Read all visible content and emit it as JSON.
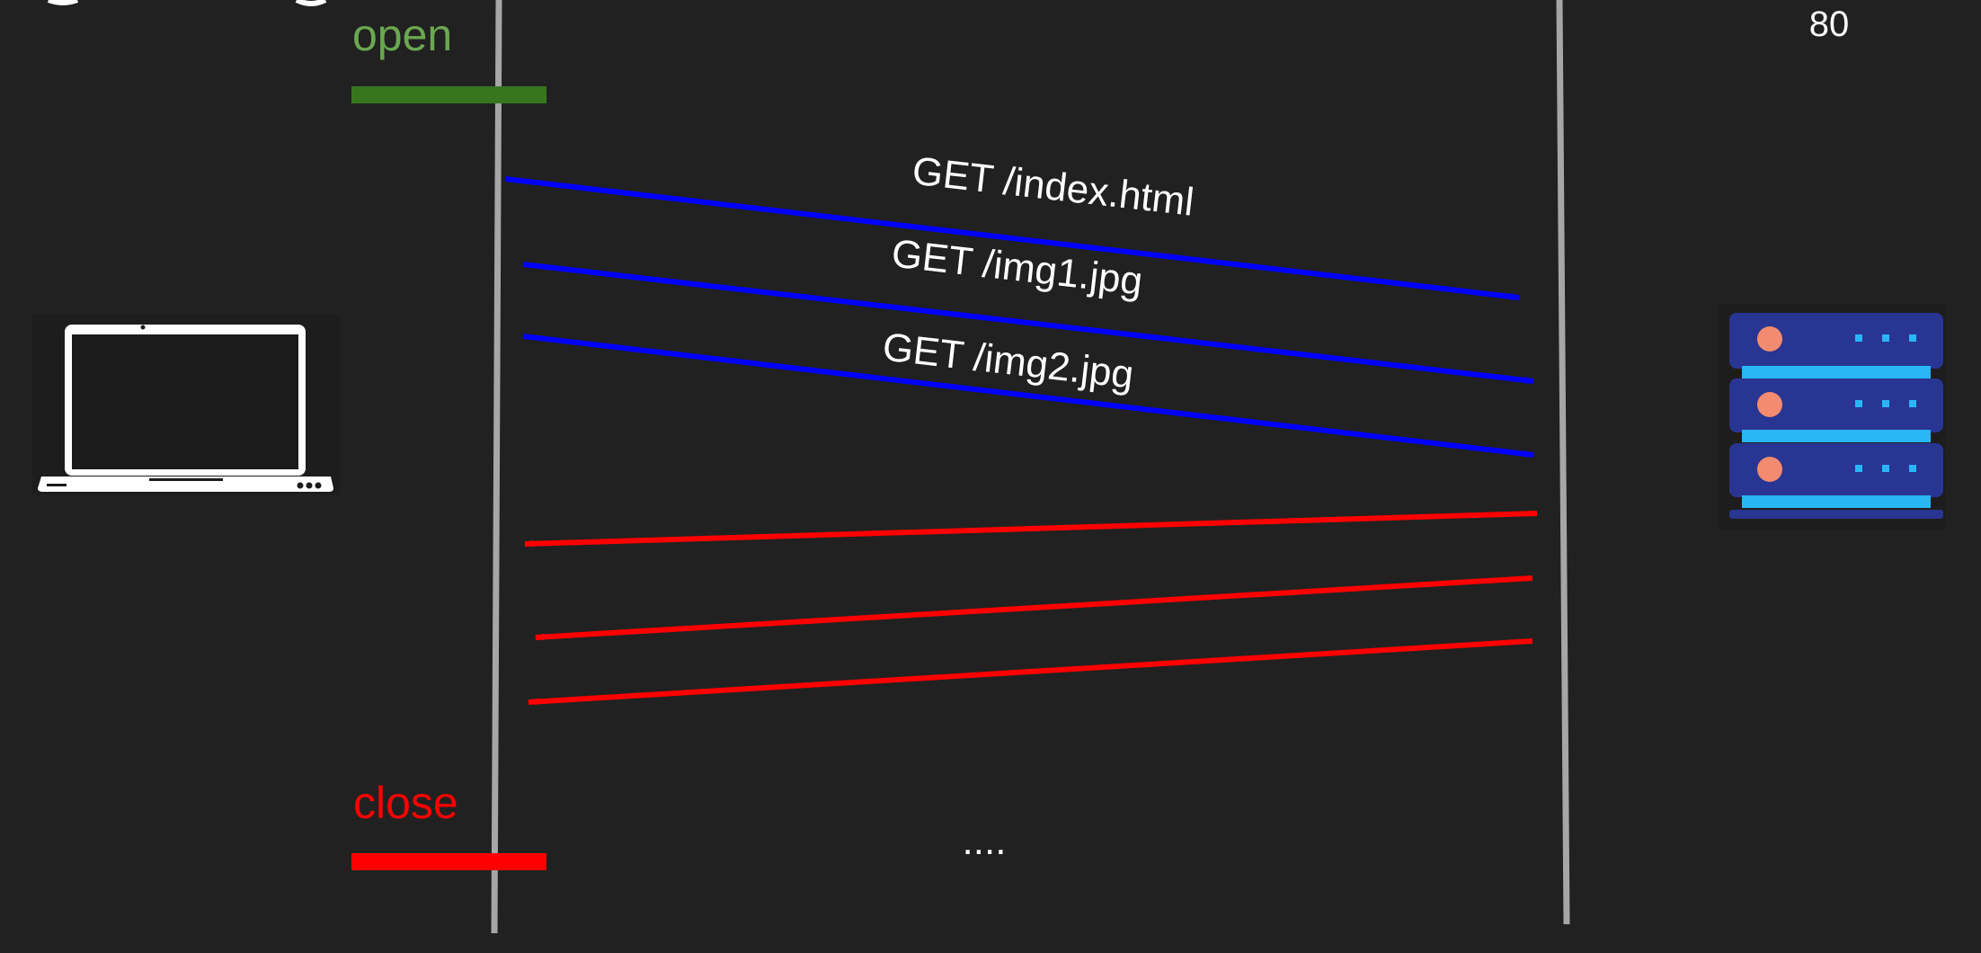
{
  "diagram": {
    "port_label": "80",
    "open_label": "open",
    "close_label": "close",
    "ellipsis": "....",
    "requests": [
      "GET /index.html",
      "GET /img1.jpg",
      "GET /img2.jpg"
    ],
    "colors": {
      "background": "#212121",
      "lifeline": "#a6a6a6",
      "open": "#6aa84f",
      "open_bar": "#38761d",
      "close": "#ff0000",
      "request_arrow": "#0000ff",
      "response_arrow": "#ff0000",
      "text": "#ffffff"
    }
  }
}
